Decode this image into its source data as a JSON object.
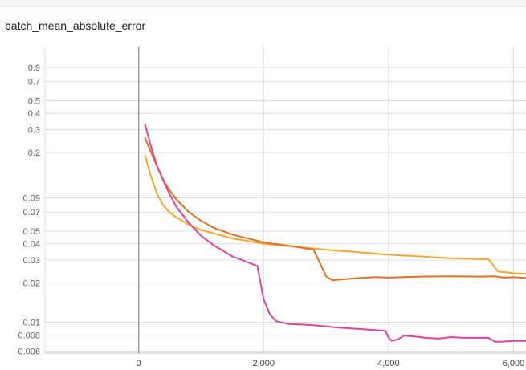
{
  "chart_data": {
    "type": "line",
    "title": "batch_mean_absolute_error",
    "xlabel": "",
    "ylabel": "",
    "y_scale": "log",
    "grid": true,
    "xlim": [
      -1500,
      6200
    ],
    "ylim": [
      0.0058,
      1.3
    ],
    "x_ticks": [
      0,
      2000,
      4000,
      6000
    ],
    "x_tick_labels": [
      "0",
      "2,000",
      "4,000",
      "6,000"
    ],
    "y_ticks": [
      0.006,
      0.008,
      0.01,
      0.02,
      0.03,
      0.04,
      0.05,
      0.07,
      0.09,
      0.2,
      0.3,
      0.4,
      0.5,
      0.7,
      0.9
    ],
    "y_tick_labels": [
      "0.006",
      "0.008",
      "0.01",
      "0.02",
      "0.03",
      "0.04",
      "0.05",
      "0.07",
      "0.09",
      "0.2",
      "0.3",
      "0.4",
      "0.5",
      "0.7",
      "0.9"
    ],
    "series": [
      {
        "color": "#f2a72f",
        "points": [
          [
            100,
            0.19
          ],
          [
            200,
            0.13
          ],
          [
            300,
            0.095
          ],
          [
            400,
            0.078
          ],
          [
            500,
            0.069
          ],
          [
            600,
            0.064
          ],
          [
            800,
            0.056
          ],
          [
            1000,
            0.051
          ],
          [
            1200,
            0.048
          ],
          [
            1500,
            0.044
          ],
          [
            2000,
            0.04
          ],
          [
            2500,
            0.038
          ],
          [
            3000,
            0.036
          ],
          [
            3500,
            0.0345
          ],
          [
            4000,
            0.033
          ],
          [
            4500,
            0.032
          ],
          [
            5000,
            0.031
          ],
          [
            5500,
            0.0305
          ],
          [
            5600,
            0.0304
          ],
          [
            5750,
            0.0245
          ],
          [
            6000,
            0.0238
          ],
          [
            6200,
            0.0235
          ]
        ]
      },
      {
        "color": "#de7325",
        "points": [
          [
            100,
            0.26
          ],
          [
            200,
            0.2
          ],
          [
            300,
            0.155
          ],
          [
            400,
            0.122
          ],
          [
            500,
            0.102
          ],
          [
            600,
            0.088
          ],
          [
            800,
            0.07
          ],
          [
            1000,
            0.06
          ],
          [
            1200,
            0.053
          ],
          [
            1500,
            0.047
          ],
          [
            2000,
            0.041
          ],
          [
            2500,
            0.038
          ],
          [
            2800,
            0.036
          ],
          [
            3000,
            0.0225
          ],
          [
            3100,
            0.021
          ],
          [
            3200,
            0.0212
          ],
          [
            3500,
            0.0218
          ],
          [
            3800,
            0.0222
          ],
          [
            4000,
            0.022
          ],
          [
            4500,
            0.0224
          ],
          [
            5000,
            0.0225
          ],
          [
            5500,
            0.0224
          ],
          [
            5700,
            0.0225
          ],
          [
            5850,
            0.022
          ],
          [
            6000,
            0.0222
          ],
          [
            6200,
            0.0218
          ]
        ]
      },
      {
        "color": "#d9469c",
        "points": [
          [
            100,
            0.33
          ],
          [
            200,
            0.22
          ],
          [
            300,
            0.155
          ],
          [
            400,
            0.12
          ],
          [
            500,
            0.095
          ],
          [
            600,
            0.077
          ],
          [
            800,
            0.058
          ],
          [
            1000,
            0.046
          ],
          [
            1200,
            0.039
          ],
          [
            1500,
            0.032
          ],
          [
            1900,
            0.027
          ],
          [
            2000,
            0.015
          ],
          [
            2100,
            0.0115
          ],
          [
            2200,
            0.0102
          ],
          [
            2400,
            0.0097
          ],
          [
            2600,
            0.0096
          ],
          [
            2800,
            0.0095
          ],
          [
            3000,
            0.0093
          ],
          [
            3200,
            0.0091
          ],
          [
            3500,
            0.0089
          ],
          [
            3800,
            0.0087
          ],
          [
            3950,
            0.0086
          ],
          [
            4000,
            0.0076
          ],
          [
            4050,
            0.0072
          ],
          [
            4150,
            0.0074
          ],
          [
            4250,
            0.0079
          ],
          [
            4400,
            0.0078
          ],
          [
            4600,
            0.0076
          ],
          [
            4800,
            0.0075
          ],
          [
            5000,
            0.0077
          ],
          [
            5200,
            0.0076
          ],
          [
            5400,
            0.0076
          ],
          [
            5600,
            0.0076
          ],
          [
            5700,
            0.0071
          ],
          [
            5800,
            0.0071
          ],
          [
            6000,
            0.0072
          ],
          [
            6200,
            0.0072
          ]
        ]
      }
    ]
  }
}
